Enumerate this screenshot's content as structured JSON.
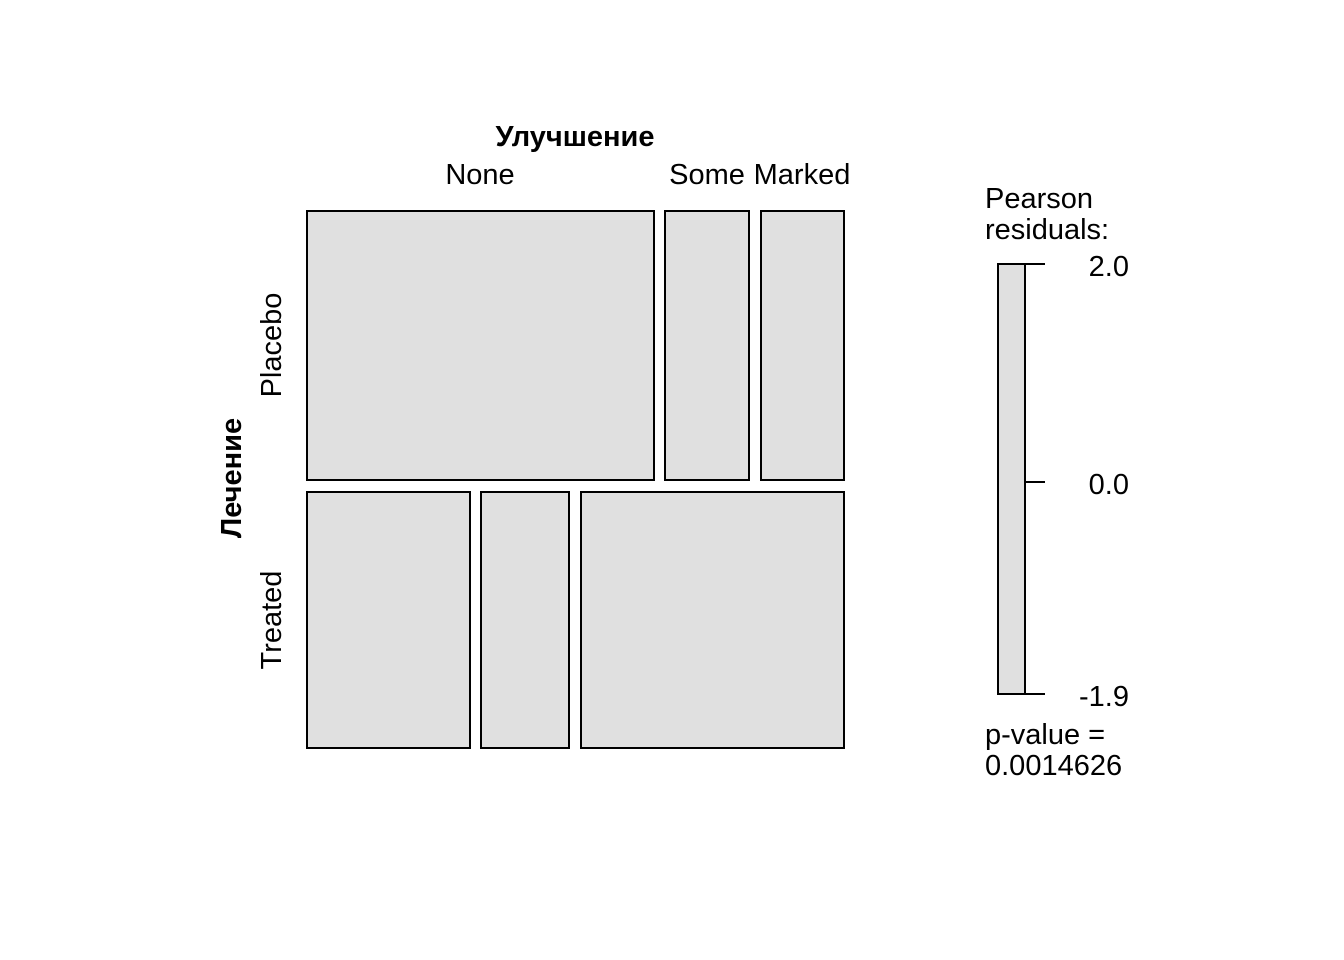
{
  "chart_data": {
    "type": "mosaic",
    "column_variable": "Улучшение",
    "row_variable": "Лечение",
    "column_levels": [
      "None",
      "Some",
      "Marked"
    ],
    "row_levels": [
      "Placebo",
      "Treated"
    ],
    "row_proportions": [
      0.512,
      0.488
    ],
    "cells": [
      {
        "row": "Placebo",
        "col": "None",
        "proportion": 0.674
      },
      {
        "row": "Placebo",
        "col": "Some",
        "proportion": 0.163
      },
      {
        "row": "Placebo",
        "col": "Marked",
        "proportion": 0.163
      },
      {
        "row": "Treated",
        "col": "None",
        "proportion": 0.317
      },
      {
        "row": "Treated",
        "col": "Some",
        "proportion": 0.171
      },
      {
        "row": "Treated",
        "col": "Marked",
        "proportion": 0.512
      }
    ],
    "fill_color": "#e0e0e0",
    "legend": {
      "title_line1": "Pearson",
      "title_line2": "residuals:",
      "ticks": [
        "2.0",
        "0.0",
        "-1.9"
      ],
      "range": [
        -1.9,
        2.0
      ],
      "pvalue_line1": "p-value =",
      "pvalue_line2": "0.0014626"
    }
  }
}
